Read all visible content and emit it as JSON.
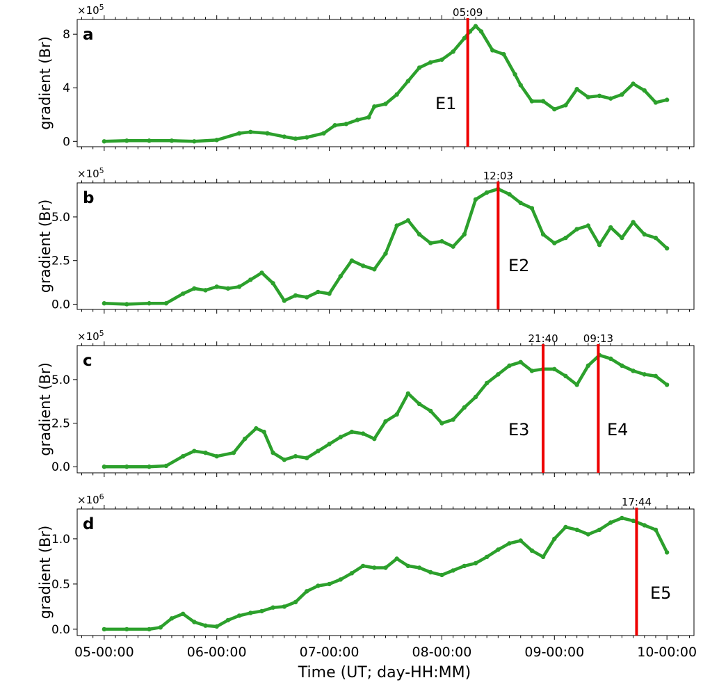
{
  "colors": {
    "series": "#2ca02c",
    "event_line": "#ee0000",
    "axis": "#000000"
  },
  "figure": {
    "xlabel": "Time (UT; day-HH:MM)"
  },
  "chart_data": [
    {
      "type": "line",
      "panel": "a",
      "ylabel": "gradient (Br)",
      "multiplier": "×10",
      "multiplier_exp": "5",
      "x_unit": "day (May 5–10)",
      "xlim": [
        4.76,
        10.24
      ],
      "ylim": [
        -0.4,
        9.1
      ],
      "yticks": [
        0,
        4,
        8
      ],
      "yticklabels": [
        "0",
        "4",
        "8"
      ],
      "x": [
        5.0,
        5.2,
        5.4,
        5.6,
        5.8,
        6.0,
        6.2,
        6.3,
        6.45,
        6.6,
        6.7,
        6.8,
        6.95,
        7.05,
        7.15,
        7.25,
        7.35,
        7.4,
        7.5,
        7.6,
        7.7,
        7.8,
        7.9,
        8.0,
        8.1,
        8.2,
        8.25,
        8.3,
        8.35,
        8.45,
        8.55,
        8.65,
        8.7,
        8.8,
        8.9,
        9.0,
        9.1,
        9.2,
        9.3,
        9.4,
        9.5,
        9.6,
        9.7,
        9.8,
        9.9,
        10.0
      ],
      "y": [
        0.0,
        0.05,
        0.05,
        0.05,
        0.0,
        0.1,
        0.6,
        0.7,
        0.6,
        0.35,
        0.2,
        0.3,
        0.6,
        1.2,
        1.3,
        1.6,
        1.8,
        2.6,
        2.8,
        3.5,
        4.5,
        5.5,
        5.9,
        6.1,
        6.7,
        7.7,
        8.2,
        8.6,
        8.2,
        6.8,
        6.5,
        5.0,
        4.2,
        3.0,
        3.0,
        2.4,
        2.7,
        3.9,
        3.3,
        3.4,
        3.2,
        3.5,
        4.3,
        3.8,
        2.9,
        3.1
      ],
      "events": [
        {
          "x": 8.23,
          "label": "E1",
          "time": "05:09"
        }
      ]
    },
    {
      "type": "line",
      "panel": "b",
      "ylabel": "gradient (Br)",
      "multiplier": "×10",
      "multiplier_exp": "5",
      "x_unit": "day (May 5–10)",
      "xlim": [
        4.76,
        10.24
      ],
      "ylim": [
        -0.3,
        6.95
      ],
      "yticks": [
        0,
        2.5,
        5.0
      ],
      "yticklabels": [
        "0.0",
        "2.5",
        "5.0"
      ],
      "x": [
        5.0,
        5.2,
        5.4,
        5.55,
        5.7,
        5.8,
        5.9,
        6.0,
        6.1,
        6.2,
        6.3,
        6.4,
        6.5,
        6.6,
        6.7,
        6.8,
        6.9,
        7.0,
        7.1,
        7.2,
        7.3,
        7.4,
        7.5,
        7.6,
        7.7,
        7.8,
        7.9,
        8.0,
        8.1,
        8.2,
        8.3,
        8.4,
        8.5,
        8.6,
        8.7,
        8.8,
        8.9,
        9.0,
        9.1,
        9.2,
        9.3,
        9.4,
        9.5,
        9.6,
        9.7,
        9.8,
        9.9,
        10.0
      ],
      "y": [
        0.05,
        0.0,
        0.05,
        0.05,
        0.6,
        0.9,
        0.8,
        1.0,
        0.9,
        1.0,
        1.4,
        1.8,
        1.2,
        0.2,
        0.5,
        0.4,
        0.7,
        0.6,
        1.6,
        2.5,
        2.2,
        2.0,
        2.9,
        4.5,
        4.8,
        4.0,
        3.5,
        3.6,
        3.3,
        4.0,
        6.0,
        6.4,
        6.6,
        6.3,
        5.8,
        5.5,
        4.0,
        3.5,
        3.8,
        4.3,
        4.5,
        3.4,
        4.4,
        3.8,
        4.7,
        4.0,
        3.8,
        3.2
      ],
      "events": [
        {
          "x": 8.5,
          "label": "E2",
          "time": "12:03"
        }
      ]
    },
    {
      "type": "line",
      "panel": "c",
      "ylabel": "gradient (Br)",
      "multiplier": "×10",
      "multiplier_exp": "5",
      "x_unit": "day (May 5–10)",
      "xlim": [
        4.76,
        10.24
      ],
      "ylim": [
        -0.35,
        6.95
      ],
      "yticks": [
        0,
        2.5,
        5.0
      ],
      "yticklabels": [
        "0.0",
        "2.5",
        "5.0"
      ],
      "x": [
        5.0,
        5.2,
        5.4,
        5.55,
        5.7,
        5.8,
        5.9,
        6.0,
        6.15,
        6.25,
        6.35,
        6.42,
        6.5,
        6.6,
        6.7,
        6.8,
        6.9,
        7.0,
        7.1,
        7.2,
        7.3,
        7.4,
        7.5,
        7.6,
        7.7,
        7.8,
        7.9,
        8.0,
        8.1,
        8.2,
        8.3,
        8.4,
        8.5,
        8.6,
        8.7,
        8.8,
        8.9,
        9.0,
        9.1,
        9.2,
        9.3,
        9.4,
        9.5,
        9.6,
        9.7,
        9.8,
        9.9,
        10.0
      ],
      "y": [
        0.0,
        0.0,
        0.0,
        0.05,
        0.6,
        0.9,
        0.8,
        0.6,
        0.8,
        1.6,
        2.2,
        2.0,
        0.8,
        0.4,
        0.6,
        0.5,
        0.9,
        1.3,
        1.7,
        2.0,
        1.9,
        1.6,
        2.6,
        3.0,
        4.2,
        3.6,
        3.2,
        2.5,
        2.7,
        3.4,
        4.0,
        4.8,
        5.3,
        5.8,
        6.0,
        5.5,
        5.6,
        5.6,
        5.2,
        4.7,
        5.8,
        6.4,
        6.2,
        5.8,
        5.5,
        5.3,
        5.2,
        4.7
      ],
      "events": [
        {
          "x": 8.9,
          "label": "E3",
          "time": "21:40"
        },
        {
          "x": 9.39,
          "label": "E4",
          "time": "09:13"
        }
      ]
    },
    {
      "type": "line",
      "panel": "d",
      "ylabel": "gradient (Br)",
      "multiplier": "×10",
      "multiplier_exp": "6",
      "x_unit": "day (May 5–10)",
      "xlim": [
        4.76,
        10.24
      ],
      "ylim": [
        -0.07,
        1.33
      ],
      "yticks": [
        0,
        0.5,
        1.0
      ],
      "yticklabels": [
        "0.0",
        "0.5",
        "1.0"
      ],
      "x": [
        5.0,
        5.2,
        5.4,
        5.5,
        5.6,
        5.7,
        5.8,
        5.9,
        6.0,
        6.1,
        6.2,
        6.3,
        6.4,
        6.5,
        6.6,
        6.7,
        6.8,
        6.9,
        7.0,
        7.1,
        7.2,
        7.3,
        7.4,
        7.5,
        7.6,
        7.7,
        7.8,
        7.9,
        8.0,
        8.1,
        8.2,
        8.3,
        8.4,
        8.5,
        8.6,
        8.7,
        8.8,
        8.9,
        9.0,
        9.1,
        9.2,
        9.3,
        9.4,
        9.5,
        9.6,
        9.7,
        9.8,
        9.9,
        10.0
      ],
      "y": [
        0.0,
        0.0,
        0.0,
        0.02,
        0.12,
        0.17,
        0.08,
        0.04,
        0.03,
        0.1,
        0.15,
        0.18,
        0.2,
        0.24,
        0.25,
        0.3,
        0.42,
        0.48,
        0.5,
        0.55,
        0.62,
        0.7,
        0.68,
        0.68,
        0.78,
        0.7,
        0.68,
        0.63,
        0.6,
        0.65,
        0.7,
        0.73,
        0.8,
        0.88,
        0.95,
        0.98,
        0.87,
        0.8,
        1.0,
        1.13,
        1.1,
        1.05,
        1.1,
        1.18,
        1.23,
        1.2,
        1.15,
        1.1,
        0.85
      ],
      "events": [
        {
          "x": 9.73,
          "label": "E5",
          "time": "17:44"
        }
      ]
    }
  ],
  "x_axis": {
    "tick_values": [
      5,
      6,
      7,
      8,
      9,
      10
    ],
    "tick_labels": [
      "05-00:00",
      "06-00:00",
      "07-00:00",
      "08-00:00",
      "09-00:00",
      "10-00:00"
    ]
  }
}
